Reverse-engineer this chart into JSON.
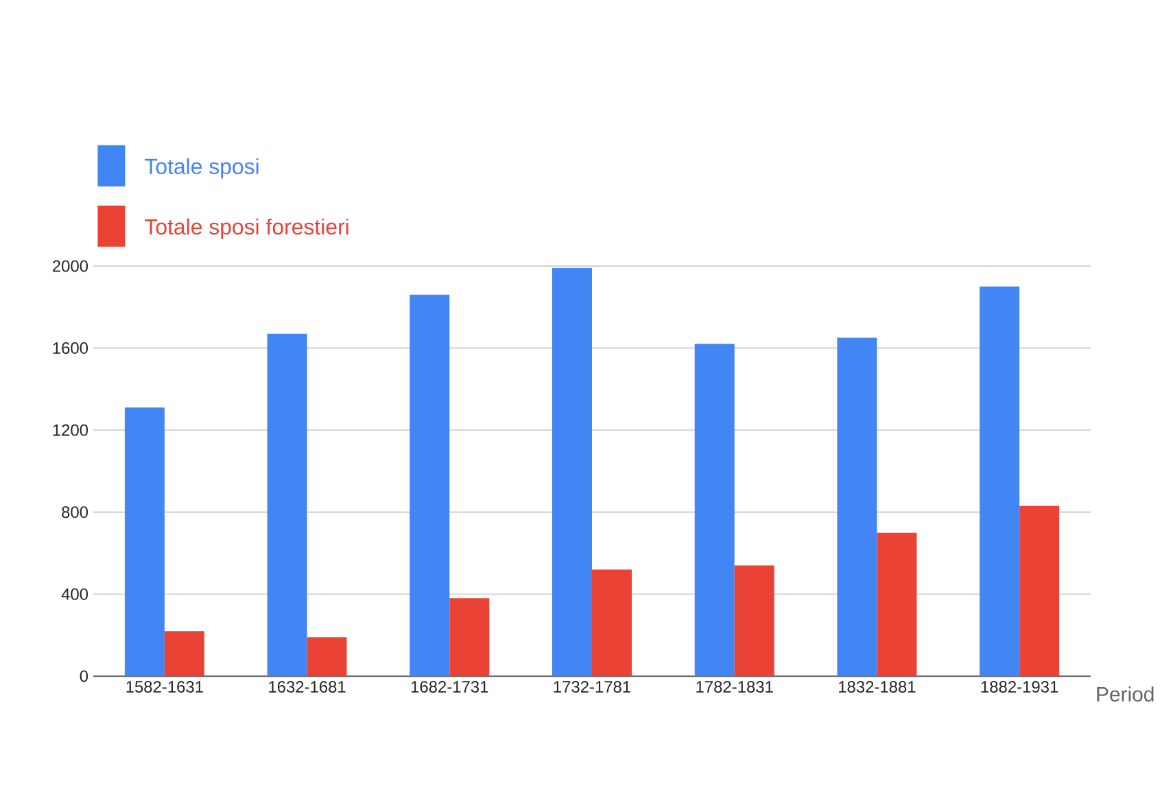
{
  "chart_data": {
    "type": "bar",
    "xlabel": "Period",
    "categories": [
      "1582-1631",
      "1632-1681",
      "1682-1731",
      "1732-1781",
      "1782-1831",
      "1832-1881",
      "1882-1931"
    ],
    "series": [
      {
        "name": "Totale sposi",
        "color": "#4285f4",
        "values": [
          1310,
          1670,
          1860,
          1990,
          1620,
          1650,
          1900
        ]
      },
      {
        "name": "Totale sposi forestieri",
        "color": "#ea4335",
        "values": [
          220,
          190,
          380,
          520,
          540,
          700,
          830
        ]
      }
    ],
    "ylim": [
      0,
      2000
    ],
    "yticks": [
      0,
      400,
      800,
      1200,
      1600,
      2000
    ],
    "grid": "y",
    "legend": "top left"
  }
}
